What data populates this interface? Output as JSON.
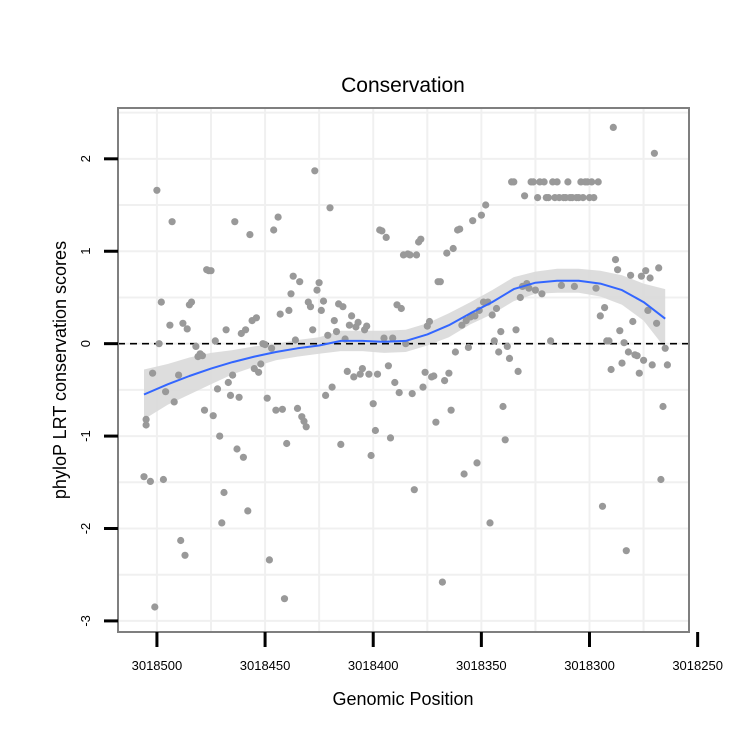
{
  "chart_data": {
    "type": "scatter",
    "title": "Conservation",
    "xlabel": "Genomic Position",
    "ylabel": "phyloP LRT conservation scores",
    "xlim": [
      3018518,
      3018254
    ],
    "ylim": [
      -3.12,
      2.55
    ],
    "x_reversed": true,
    "x_ticks": [
      3018500,
      3018450,
      3018400,
      3018350,
      3018300,
      3018250
    ],
    "x_tick_labels": [
      "3018500",
      "3018450",
      "3018400",
      "3018350",
      "3018300",
      "3018250"
    ],
    "y_ticks": [
      -3,
      -2,
      -1,
      0,
      1,
      2
    ],
    "y_tick_labels": [
      "-3",
      "-2",
      "-1",
      "0",
      "1",
      "2"
    ],
    "reference_line": {
      "y": 0,
      "style": "dashed",
      "color": "#000000"
    },
    "colors": {
      "points": "#999999",
      "smooth": "#3366ff",
      "ribbon": "#d9d9d9",
      "frame": "#7f7f7f",
      "grid": "#f0f0f0"
    },
    "points": [
      [
        3018506,
        -1.44
      ],
      [
        3018505,
        -0.88
      ],
      [
        3018505,
        -0.82
      ],
      [
        3018503,
        -1.49
      ],
      [
        3018502,
        -0.32
      ],
      [
        3018501,
        -2.85
      ],
      [
        3018500,
        1.66
      ],
      [
        3018499,
        0.0
      ],
      [
        3018498,
        0.45
      ],
      [
        3018497,
        -1.47
      ],
      [
        3018496,
        -0.52
      ],
      [
        3018494,
        0.2
      ],
      [
        3018493,
        1.32
      ],
      [
        3018492,
        -0.63
      ],
      [
        3018490,
        -0.34
      ],
      [
        3018489,
        -2.13
      ],
      [
        3018488,
        0.22
      ],
      [
        3018487,
        -2.29
      ],
      [
        3018486,
        0.16
      ],
      [
        3018485,
        0.42
      ],
      [
        3018484,
        0.45
      ],
      [
        3018482,
        -0.03
      ],
      [
        3018481,
        -0.14
      ],
      [
        3018480,
        -0.11
      ],
      [
        3018479,
        -0.13
      ],
      [
        3018478,
        -0.72
      ],
      [
        3018477,
        0.8
      ],
      [
        3018476,
        0.79
      ],
      [
        3018475,
        0.79
      ],
      [
        3018474,
        -0.78
      ],
      [
        3018473,
        0.03
      ],
      [
        3018472,
        -0.49
      ],
      [
        3018471,
        -1.0
      ],
      [
        3018470,
        -1.94
      ],
      [
        3018469,
        -1.61
      ],
      [
        3018468,
        0.15
      ],
      [
        3018467,
        -0.42
      ],
      [
        3018466,
        -0.56
      ],
      [
        3018465,
        -0.34
      ],
      [
        3018464,
        1.32
      ],
      [
        3018463,
        -1.14
      ],
      [
        3018462,
        -0.58
      ],
      [
        3018461,
        0.11
      ],
      [
        3018460,
        -1.23
      ],
      [
        3018459,
        0.15
      ],
      [
        3018458,
        -1.81
      ],
      [
        3018457,
        1.18
      ],
      [
        3018456,
        0.25
      ],
      [
        3018455,
        -0.27
      ],
      [
        3018454,
        0.28
      ],
      [
        3018453,
        -0.31
      ],
      [
        3018452,
        -0.22
      ],
      [
        3018451,
        0.0
      ],
      [
        3018450,
        -0.01
      ],
      [
        3018449,
        -0.59
      ],
      [
        3018448,
        -2.34
      ],
      [
        3018447,
        -0.05
      ],
      [
        3018446,
        1.23
      ],
      [
        3018445,
        -0.72
      ],
      [
        3018444,
        1.37
      ],
      [
        3018443,
        0.32
      ],
      [
        3018442,
        -0.71
      ],
      [
        3018441,
        -2.76
      ],
      [
        3018440,
        -1.08
      ],
      [
        3018439,
        0.36
      ],
      [
        3018438,
        0.54
      ],
      [
        3018437,
        0.73
      ],
      [
        3018436,
        0.04
      ],
      [
        3018435,
        -0.7
      ],
      [
        3018434,
        0.67
      ],
      [
        3018433,
        -0.79
      ],
      [
        3018432,
        -0.84
      ],
      [
        3018431,
        -0.9
      ],
      [
        3018430,
        0.45
      ],
      [
        3018429,
        0.4
      ],
      [
        3018428,
        0.15
      ],
      [
        3018427,
        1.87
      ],
      [
        3018426,
        0.58
      ],
      [
        3018425,
        0.66
      ],
      [
        3018424,
        0.36
      ],
      [
        3018423,
        0.46
      ],
      [
        3018422,
        -0.56
      ],
      [
        3018421,
        0.09
      ],
      [
        3018420,
        1.47
      ],
      [
        3018419,
        -0.47
      ],
      [
        3018418,
        0.25
      ],
      [
        3018417,
        0.13
      ],
      [
        3018416,
        0.43
      ],
      [
        3018415,
        -1.09
      ],
      [
        3018414,
        0.4
      ],
      [
        3018413,
        0.05
      ],
      [
        3018412,
        -0.3
      ],
      [
        3018411,
        0.2
      ],
      [
        3018410,
        0.3
      ],
      [
        3018409,
        -0.36
      ],
      [
        3018408,
        0.18
      ],
      [
        3018407,
        0.23
      ],
      [
        3018406,
        -0.33
      ],
      [
        3018405,
        -0.27
      ],
      [
        3018404,
        0.15
      ],
      [
        3018403,
        0.19
      ],
      [
        3018402,
        -0.33
      ],
      [
        3018401,
        -1.21
      ],
      [
        3018400,
        -0.65
      ],
      [
        3018399,
        -0.94
      ],
      [
        3018398,
        -0.33
      ],
      [
        3018397,
        1.23
      ],
      [
        3018396,
        1.22
      ],
      [
        3018395,
        0.06
      ],
      [
        3018394,
        1.15
      ],
      [
        3018393,
        -0.24
      ],
      [
        3018392,
        -1.02
      ],
      [
        3018391,
        0.06
      ],
      [
        3018390,
        -0.42
      ],
      [
        3018389,
        0.42
      ],
      [
        3018388,
        -0.53
      ],
      [
        3018387,
        0.38
      ],
      [
        3018386,
        0.96
      ],
      [
        3018385,
        0.0
      ],
      [
        3018384,
        0.97
      ],
      [
        3018383,
        0.96
      ],
      [
        3018382,
        -0.54
      ],
      [
        3018381,
        -1.58
      ],
      [
        3018380,
        0.96
      ],
      [
        3018379,
        1.1
      ],
      [
        3018378,
        1.13
      ],
      [
        3018377,
        -0.47
      ],
      [
        3018376,
        -0.31
      ],
      [
        3018375,
        0.19
      ],
      [
        3018374,
        0.24
      ],
      [
        3018373,
        -0.36
      ],
      [
        3018372,
        -0.35
      ],
      [
        3018371,
        -0.85
      ],
      [
        3018370,
        0.67
      ],
      [
        3018369,
        0.67
      ],
      [
        3018368,
        -2.58
      ],
      [
        3018367,
        -0.4
      ],
      [
        3018366,
        0.98
      ],
      [
        3018365,
        -0.32
      ],
      [
        3018364,
        -0.72
      ],
      [
        3018363,
        1.03
      ],
      [
        3018362,
        -0.09
      ],
      [
        3018361,
        1.23
      ],
      [
        3018360,
        1.24
      ],
      [
        3018359,
        0.2
      ],
      [
        3018358,
        -1.41
      ],
      [
        3018357,
        0.25
      ],
      [
        3018356,
        -0.04
      ],
      [
        3018355,
        0.29
      ],
      [
        3018354,
        1.33
      ],
      [
        3018353,
        0.3
      ],
      [
        3018352,
        -1.29
      ],
      [
        3018351,
        0.36
      ],
      [
        3018350,
        1.39
      ],
      [
        3018349,
        0.45
      ],
      [
        3018348,
        1.5
      ],
      [
        3018347,
        0.45
      ],
      [
        3018346,
        -1.94
      ],
      [
        3018345,
        0.31
      ],
      [
        3018344,
        0.03
      ],
      [
        3018343,
        0.38
      ],
      [
        3018342,
        -0.09
      ],
      [
        3018341,
        0.13
      ],
      [
        3018340,
        -0.68
      ],
      [
        3018339,
        -1.04
      ],
      [
        3018338,
        -0.03
      ],
      [
        3018337,
        -0.16
      ],
      [
        3018336,
        1.75
      ],
      [
        3018335,
        1.75
      ],
      [
        3018334,
        0.15
      ],
      [
        3018333,
        -0.3
      ],
      [
        3018332,
        0.5
      ],
      [
        3018331,
        0.62
      ],
      [
        3018330,
        1.6
      ],
      [
        3018329,
        0.65
      ],
      [
        3018328,
        0.6
      ],
      [
        3018327,
        1.75
      ],
      [
        3018326,
        1.75
      ],
      [
        3018325,
        0.58
      ],
      [
        3018324,
        1.58
      ],
      [
        3018323,
        1.75
      ],
      [
        3018322,
        0.54
      ],
      [
        3018321,
        1.75
      ],
      [
        3018320,
        1.58
      ],
      [
        3018319,
        1.58
      ],
      [
        3018318,
        0.03
      ],
      [
        3018317,
        1.75
      ],
      [
        3018316,
        1.58
      ],
      [
        3018315,
        1.75
      ],
      [
        3018314,
        1.58
      ],
      [
        3018313,
        0.63
      ],
      [
        3018312,
        1.58
      ],
      [
        3018311,
        1.58
      ],
      [
        3018310,
        1.75
      ],
      [
        3018309,
        1.58
      ],
      [
        3018308,
        1.58
      ],
      [
        3018307,
        0.62
      ],
      [
        3018306,
        1.58
      ],
      [
        3018305,
        1.58
      ],
      [
        3018304,
        1.75
      ],
      [
        3018303,
        1.58
      ],
      [
        3018302,
        1.75
      ],
      [
        3018301,
        1.75
      ],
      [
        3018300,
        1.58
      ],
      [
        3018299,
        1.75
      ],
      [
        3018298,
        1.58
      ],
      [
        3018297,
        0.6
      ],
      [
        3018296,
        1.75
      ],
      [
        3018295,
        0.3
      ],
      [
        3018294,
        -1.76
      ],
      [
        3018293,
        0.39
      ],
      [
        3018292,
        0.03
      ],
      [
        3018291,
        0.03
      ],
      [
        3018290,
        -0.28
      ],
      [
        3018289,
        2.34
      ],
      [
        3018288,
        0.91
      ],
      [
        3018287,
        0.8
      ],
      [
        3018286,
        0.14
      ],
      [
        3018285,
        -0.21
      ],
      [
        3018284,
        0.01
      ],
      [
        3018283,
        -2.24
      ],
      [
        3018282,
        -0.09
      ],
      [
        3018281,
        0.74
      ],
      [
        3018280,
        0.24
      ],
      [
        3018279,
        -0.12
      ],
      [
        3018278,
        -0.13
      ],
      [
        3018277,
        -0.32
      ],
      [
        3018276,
        0.73
      ],
      [
        3018275,
        -0.18
      ],
      [
        3018274,
        0.79
      ],
      [
        3018273,
        0.36
      ],
      [
        3018272,
        0.71
      ],
      [
        3018271,
        -0.23
      ],
      [
        3018270,
        2.06
      ],
      [
        3018269,
        0.22
      ],
      [
        3018268,
        0.82
      ],
      [
        3018267,
        -1.47
      ],
      [
        3018266,
        -0.68
      ],
      [
        3018265,
        -0.05
      ],
      [
        3018264,
        -0.23
      ]
    ],
    "smooth": {
      "x": [
        3018506,
        3018495,
        3018485,
        3018475,
        3018465,
        3018455,
        3018445,
        3018435,
        3018425,
        3018415,
        3018405,
        3018395,
        3018385,
        3018375,
        3018365,
        3018355,
        3018345,
        3018335,
        3018325,
        3018315,
        3018305,
        3018295,
        3018285,
        3018275,
        3018265
      ],
      "y": [
        -0.55,
        -0.44,
        -0.35,
        -0.27,
        -0.2,
        -0.14,
        -0.09,
        -0.05,
        -0.02,
        0.03,
        0.03,
        0.02,
        0.03,
        0.1,
        0.2,
        0.33,
        0.45,
        0.59,
        0.66,
        0.68,
        0.68,
        0.65,
        0.58,
        0.45,
        0.27
      ],
      "lower": [
        -0.82,
        -0.66,
        -0.55,
        -0.44,
        -0.33,
        -0.25,
        -0.18,
        -0.14,
        -0.11,
        -0.08,
        -0.08,
        -0.1,
        -0.09,
        -0.02,
        0.07,
        0.21,
        0.32,
        0.46,
        0.54,
        0.55,
        0.55,
        0.51,
        0.42,
        0.25,
        -0.05
      ],
      "upper": [
        -0.28,
        -0.22,
        -0.15,
        -0.1,
        -0.07,
        -0.03,
        0.0,
        0.04,
        0.07,
        0.14,
        0.14,
        0.14,
        0.15,
        0.22,
        0.33,
        0.45,
        0.58,
        0.72,
        0.78,
        0.81,
        0.81,
        0.79,
        0.74,
        0.65,
        0.59
      ]
    }
  }
}
